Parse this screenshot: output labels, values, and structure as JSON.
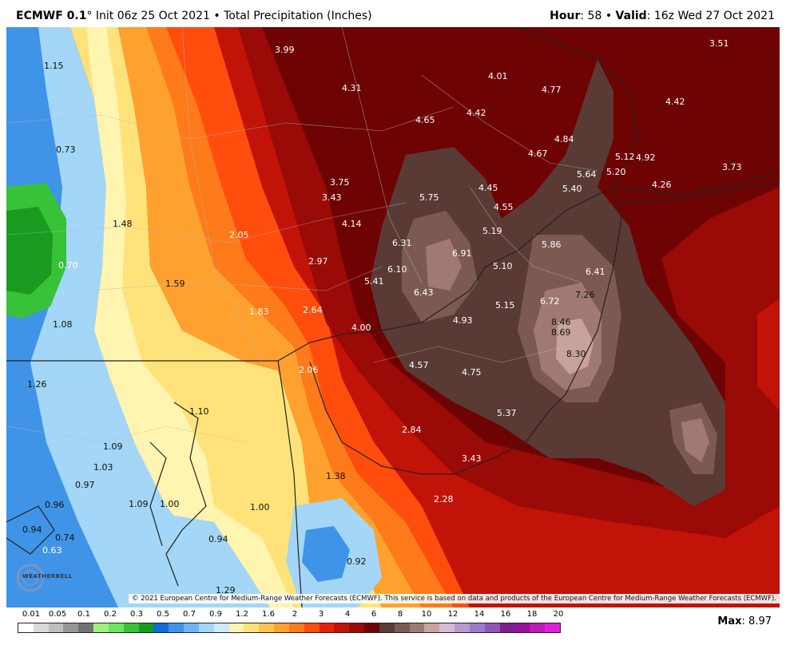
{
  "header": {
    "model": "ECMWF 0.1",
    "degree": "°",
    "init": "Init 06z 25 Oct 2021",
    "bullet": "•",
    "product": "Total Precipitation (Inches)",
    "hour_label": "Hour",
    "hour": "58",
    "valid_label": "Valid",
    "valid": "16z Wed 27 Oct 2021"
  },
  "copyright": "© 2021 European Centre for Medium-Range Weather Forecasts (ECMWF). This service is based on data and products of the European Centre for Medium-Range Weather Forecasts (ECMWF).",
  "logo": {
    "text": "WEATHERBELL"
  },
  "legend": {
    "labels": [
      "0.01",
      "0.05",
      "0.1",
      "0.2",
      "0.3",
      "0.5",
      "0.7",
      "0.9",
      "1.2",
      "1.6",
      "2",
      "3",
      "4",
      "6",
      "8",
      "10",
      "12",
      "14",
      "16",
      "18",
      "20"
    ],
    "colors": [
      "#ffffff",
      "#d9d9d9",
      "#bdbdbd",
      "#969696",
      "#737373",
      "#a1f07e",
      "#6ee35c",
      "#37c238",
      "#1a9a1f",
      "#0c6fd4",
      "#3f94e8",
      "#6db6f2",
      "#a3d6f7",
      "#cdeafb",
      "#fff4b0",
      "#ffe37a",
      "#ffc44d",
      "#ffa12e",
      "#ff7a1a",
      "#ff4d0d",
      "#e8220a",
      "#c21308",
      "#9a0a06",
      "#6e0303",
      "#5a3a34",
      "#7c5a52",
      "#a07a72",
      "#c8a39b",
      "#d6b9d6",
      "#b89ad2",
      "#9a7bcc",
      "#8f55b8",
      "#7a1f8c",
      "#95109e",
      "#c01ab8",
      "#e01dd8"
    ],
    "max_label": "Max",
    "max_value": "8.97"
  },
  "map_values": [
    {
      "v": "1.15",
      "c": "dark"
    },
    {
      "v": "3.99",
      "c": "light"
    },
    {
      "v": "3.51",
      "c": "light"
    },
    {
      "v": "4.31",
      "c": "light"
    },
    {
      "v": "4.01",
      "c": "light"
    },
    {
      "v": "4.77",
      "c": "light"
    },
    {
      "v": "4.42",
      "c": "light"
    },
    {
      "v": "4.65",
      "c": "light"
    },
    {
      "v": "4.42",
      "c": "light"
    },
    {
      "v": "0.73",
      "c": "dark"
    },
    {
      "v": "4.84",
      "c": "light"
    },
    {
      "v": "4.67",
      "c": "light"
    },
    {
      "v": "5.12",
      "c": "light"
    },
    {
      "v": "4.92",
      "c": "light"
    },
    {
      "v": "3.73",
      "c": "light"
    },
    {
      "v": "5.64",
      "c": "light"
    },
    {
      "v": "5.20",
      "c": "light"
    },
    {
      "v": "3.75",
      "c": "light"
    },
    {
      "v": "4.45",
      "c": "light"
    },
    {
      "v": "5.40",
      "c": "light"
    },
    {
      "v": "4.26",
      "c": "light"
    },
    {
      "v": "3.43",
      "c": "light"
    },
    {
      "v": "5.75",
      "c": "light"
    },
    {
      "v": "4.55",
      "c": "light"
    },
    {
      "v": "1.48",
      "c": "dark"
    },
    {
      "v": "4.14",
      "c": "light"
    },
    {
      "v": "5.19",
      "c": "light"
    },
    {
      "v": "2.05",
      "c": "light"
    },
    {
      "v": "6.31",
      "c": "light"
    },
    {
      "v": "5.86",
      "c": "light"
    },
    {
      "v": "6.91",
      "c": "light"
    },
    {
      "v": "0.70",
      "c": "light"
    },
    {
      "v": "2.97",
      "c": "light"
    },
    {
      "v": "6.10",
      "c": "light"
    },
    {
      "v": "5.10",
      "c": "light"
    },
    {
      "v": "6.41",
      "c": "light"
    },
    {
      "v": "1.59",
      "c": "dark"
    },
    {
      "v": "5.41",
      "c": "light"
    },
    {
      "v": "6.43",
      "c": "light"
    },
    {
      "v": "7.26",
      "c": "dark"
    },
    {
      "v": "6.72",
      "c": "light"
    },
    {
      "v": "1.83",
      "c": "light"
    },
    {
      "v": "2.64",
      "c": "light"
    },
    {
      "v": "5.15",
      "c": "light"
    },
    {
      "v": "1.08",
      "c": "dark"
    },
    {
      "v": "4.93",
      "c": "light"
    },
    {
      "v": "8.46",
      "c": "dark"
    },
    {
      "v": "4.00",
      "c": "light"
    },
    {
      "v": "8.69",
      "c": "dark"
    },
    {
      "v": "8.30",
      "c": "dark"
    },
    {
      "v": "2.06",
      "c": "light"
    },
    {
      "v": "4.57",
      "c": "light"
    },
    {
      "v": "4.75",
      "c": "light"
    },
    {
      "v": "1.26",
      "c": "dark"
    },
    {
      "v": "1.10",
      "c": "dark"
    },
    {
      "v": "5.37",
      "c": "light"
    },
    {
      "v": "2.84",
      "c": "light"
    },
    {
      "v": "1.09",
      "c": "dark"
    },
    {
      "v": "1.03",
      "c": "dark"
    },
    {
      "v": "3.43",
      "c": "light"
    },
    {
      "v": "1.38",
      "c": "dark"
    },
    {
      "v": "0.97",
      "c": "dark"
    },
    {
      "v": "2.28",
      "c": "light"
    },
    {
      "v": "0.96",
      "c": "dark"
    },
    {
      "v": "1.09",
      "c": "dark"
    },
    {
      "v": "1.00",
      "c": "dark"
    },
    {
      "v": "1.00",
      "c": "dark"
    },
    {
      "v": "0.94",
      "c": "dark"
    },
    {
      "v": "0.74",
      "c": "dark"
    },
    {
      "v": "0.94",
      "c": "dark"
    },
    {
      "v": "0.63",
      "c": "light"
    },
    {
      "v": "0.92",
      "c": "dark"
    },
    {
      "v": "1.29",
      "c": "dark"
    }
  ]
}
